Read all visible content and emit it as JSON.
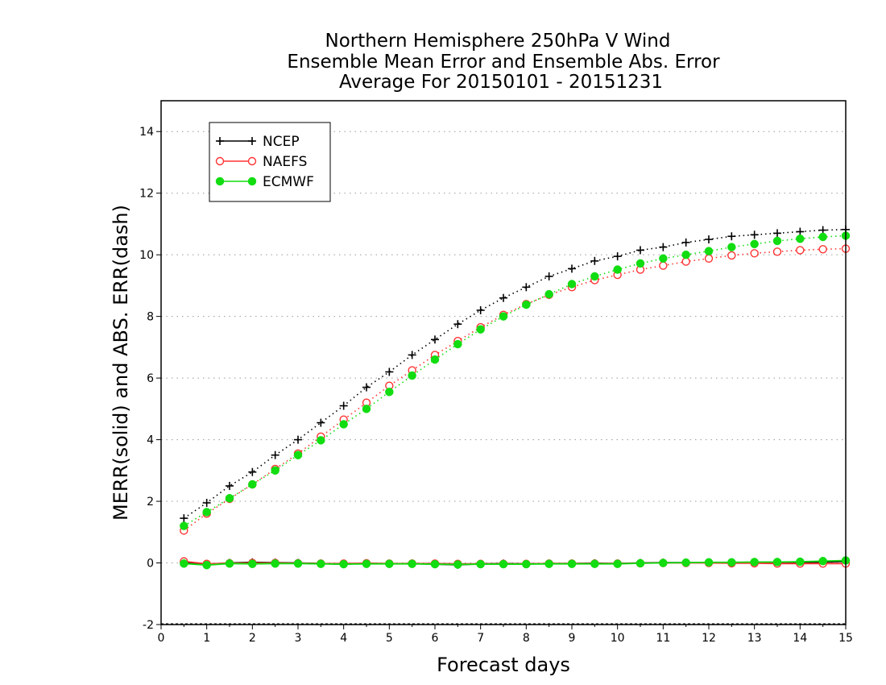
{
  "chart_data": {
    "type": "line",
    "title": [
      "Northern Hemisphere 250hPa V Wind",
      "Ensemble Mean Error and Ensemble Abs. Error",
      "Average For 20150101 - 20151231"
    ],
    "xlabel": "Forecast days",
    "ylabel": "MERR(solid) and ABS. ERR(dash)",
    "xlim": [
      0,
      15
    ],
    "ylim": [
      -2,
      15
    ],
    "xticks": [
      "0",
      "1",
      "2",
      "3",
      "4",
      "5",
      "6",
      "7",
      "8",
      "9",
      "10",
      "11",
      "12",
      "13",
      "14",
      "15"
    ],
    "yticks": [
      "-2",
      "0",
      "2",
      "4",
      "6",
      "8",
      "10",
      "12",
      "14"
    ],
    "grid": "horizontal dotted",
    "legend_position": "top-left",
    "x": [
      0.5,
      1,
      1.5,
      2,
      2.5,
      3,
      3.5,
      4,
      4.5,
      5,
      5.5,
      6,
      6.5,
      7,
      7.5,
      8,
      8.5,
      9,
      9.5,
      10,
      10.5,
      11,
      11.5,
      12,
      12.5,
      13,
      13.5,
      14,
      14.5,
      15
    ],
    "series": [
      {
        "name": "NCEP",
        "color": "#000000",
        "marker": "plus",
        "abs_err": [
          1.45,
          1.95,
          2.5,
          2.95,
          3.5,
          4.0,
          4.55,
          5.1,
          5.7,
          6.2,
          6.75,
          7.25,
          7.75,
          8.2,
          8.6,
          8.95,
          9.3,
          9.55,
          9.8,
          9.95,
          10.15,
          10.25,
          10.4,
          10.5,
          10.6,
          10.65,
          10.7,
          10.75,
          10.8,
          10.82
        ],
        "mean_err": [
          0.02,
          -0.05,
          0.0,
          0.02,
          0.01,
          0.0,
          -0.02,
          -0.04,
          -0.01,
          -0.03,
          -0.02,
          -0.04,
          -0.06,
          -0.03,
          -0.02,
          -0.03,
          -0.02,
          -0.02,
          -0.01,
          -0.02,
          0.0,
          0.01,
          0.01,
          0.01,
          0.01,
          0.01,
          0.02,
          0.02,
          0.03,
          0.05
        ]
      },
      {
        "name": "NAEFS",
        "color": "#ff3333",
        "marker": "open-circle",
        "abs_err": [
          1.05,
          1.6,
          2.08,
          2.55,
          3.05,
          3.55,
          4.1,
          4.65,
          5.2,
          5.75,
          6.25,
          6.75,
          7.2,
          7.65,
          8.05,
          8.4,
          8.7,
          8.95,
          9.18,
          9.35,
          9.52,
          9.65,
          9.78,
          9.88,
          9.98,
          10.05,
          10.1,
          10.15,
          10.18,
          10.2
        ],
        "mean_err": [
          0.05,
          -0.03,
          -0.01,
          0.0,
          0.0,
          -0.01,
          -0.02,
          -0.02,
          -0.01,
          -0.02,
          -0.02,
          -0.02,
          -0.03,
          -0.03,
          -0.03,
          -0.03,
          -0.02,
          -0.02,
          -0.02,
          -0.02,
          -0.01,
          0.0,
          0.0,
          0.0,
          -0.01,
          -0.01,
          -0.02,
          -0.02,
          -0.02,
          -0.02
        ]
      },
      {
        "name": "ECMWF",
        "color": "#11dd11",
        "marker": "filled-circle",
        "abs_err": [
          1.2,
          1.65,
          2.1,
          2.55,
          3.0,
          3.5,
          3.98,
          4.5,
          5.0,
          5.55,
          6.08,
          6.6,
          7.1,
          7.58,
          8.0,
          8.38,
          8.72,
          9.05,
          9.3,
          9.52,
          9.72,
          9.88,
          10.0,
          10.12,
          10.25,
          10.35,
          10.45,
          10.52,
          10.58,
          10.62
        ],
        "mean_err": [
          -0.02,
          -0.07,
          -0.02,
          -0.03,
          -0.02,
          -0.02,
          -0.03,
          -0.04,
          -0.03,
          -0.03,
          -0.03,
          -0.04,
          -0.05,
          -0.04,
          -0.04,
          -0.04,
          -0.03,
          -0.03,
          -0.03,
          -0.03,
          -0.01,
          0.0,
          0.01,
          0.02,
          0.02,
          0.03,
          0.03,
          0.04,
          0.06,
          0.08
        ]
      }
    ]
  }
}
